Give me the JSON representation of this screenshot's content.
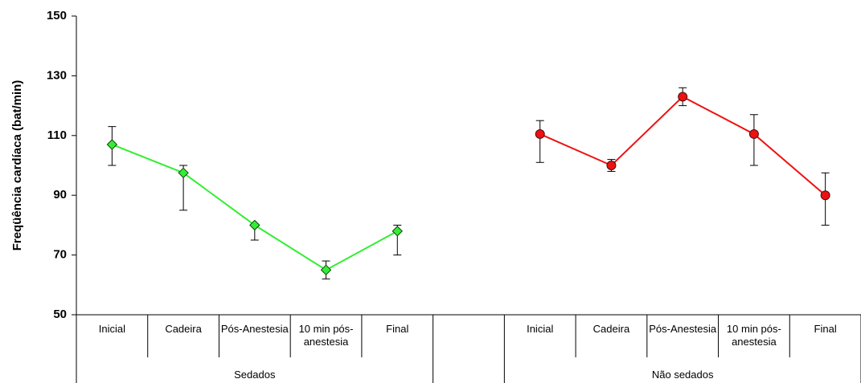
{
  "chart_data": {
    "type": "line",
    "y_label": "Freqüência cardíaca (bat/min)",
    "categories": [
      "Inicial",
      "Cadeira",
      "Pós-Anestesia",
      "10 min pós-anestesia",
      "Final",
      null,
      "Inicial",
      "Cadeira",
      "Pós-Anestesia",
      "10 min pós-anestesia",
      "Final"
    ],
    "group_labels": [
      "Sedados",
      "Não sedados"
    ],
    "series": [
      {
        "color": "#33ee33",
        "marker": "diamond",
        "values": [
          107,
          97.5,
          80,
          65,
          78,
          null,
          null,
          null,
          null,
          null,
          null
        ],
        "errors_plus": [
          6,
          2.5,
          0,
          3,
          2,
          null,
          null,
          null,
          null,
          null,
          null
        ],
        "errors_minus": [
          7,
          12.5,
          5,
          3,
          8,
          null,
          null,
          null,
          null,
          null,
          null
        ]
      },
      {
        "color": "#ee1111",
        "marker": "circle",
        "values": [
          null,
          null,
          null,
          null,
          null,
          null,
          110.5,
          100,
          123,
          110.5,
          90
        ],
        "errors_plus": [
          null,
          null,
          null,
          null,
          null,
          null,
          4.5,
          2,
          3,
          6.5,
          7.5
        ],
        "errors_minus": [
          null,
          null,
          null,
          null,
          null,
          null,
          9.5,
          2,
          3,
          10.5,
          10
        ]
      }
    ],
    "ylim": [
      50,
      150
    ],
    "yticks": [
      50,
      70,
      90,
      110,
      130,
      150
    ],
    "grid": false
  }
}
